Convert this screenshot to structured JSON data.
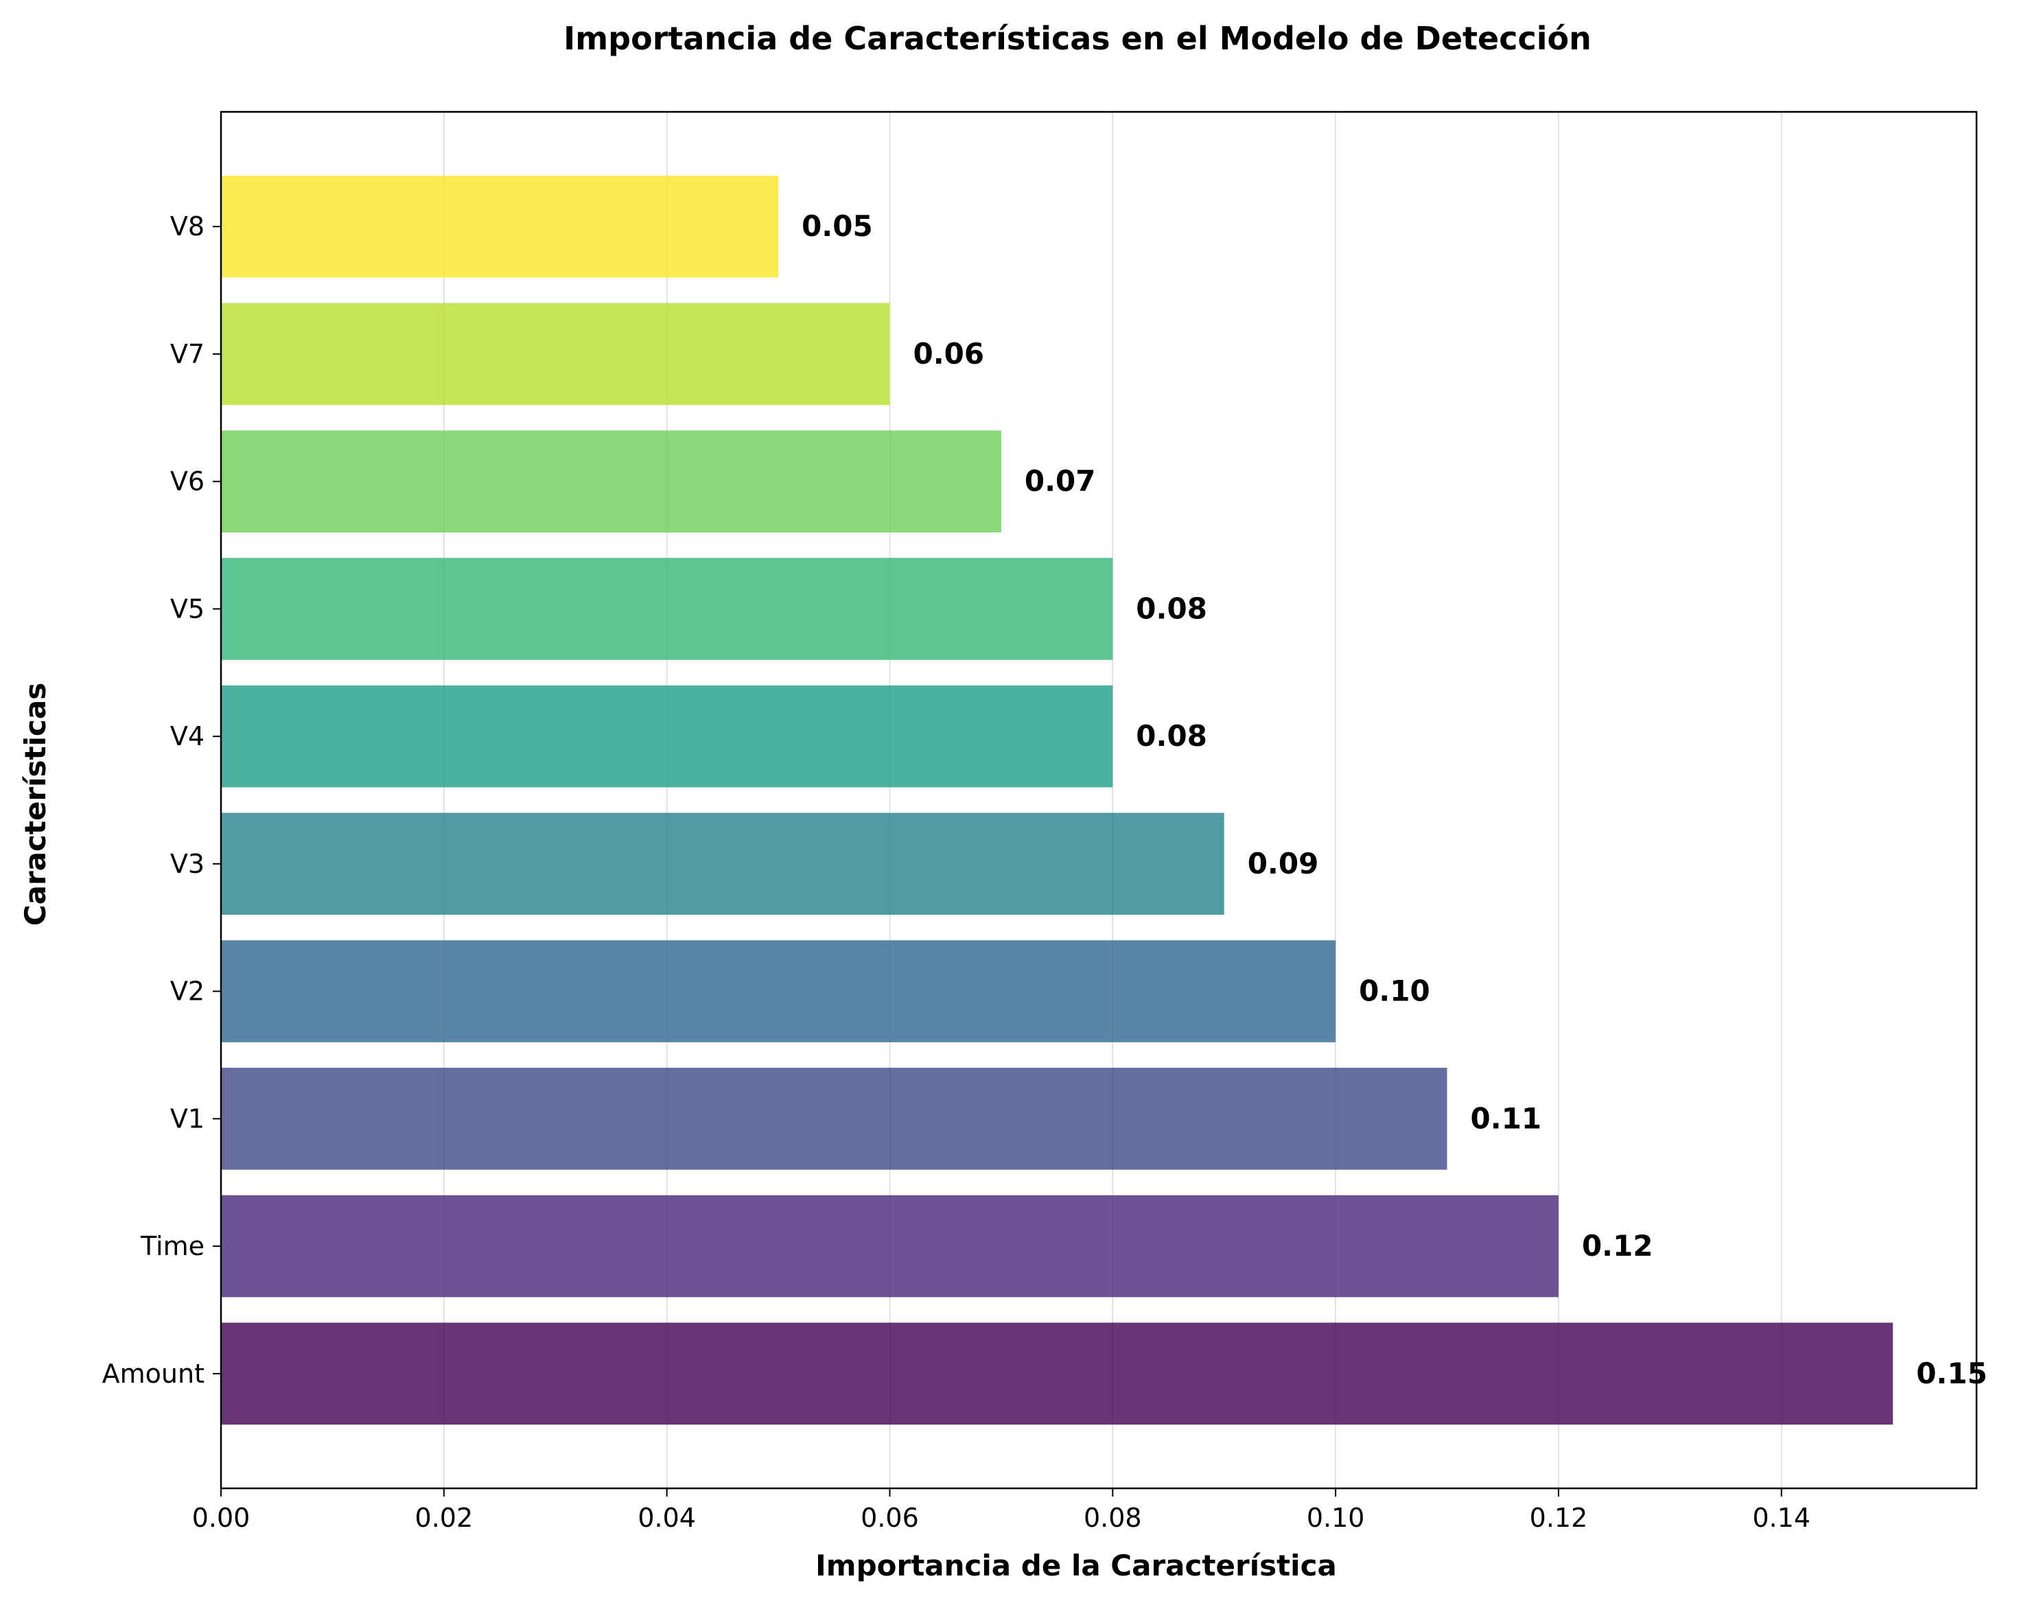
{
  "chart_data": {
    "type": "bar",
    "orientation": "horizontal",
    "title": "Importancia de Características en el Modelo de Detección",
    "xlabel": "Importancia de la Característica",
    "ylabel": "Características",
    "categories": [
      "Amount",
      "Time",
      "V1",
      "V2",
      "V3",
      "V4",
      "V5",
      "V6",
      "V7",
      "V8"
    ],
    "values": [
      0.15,
      0.12,
      0.11,
      0.1,
      0.09,
      0.08,
      0.08,
      0.07,
      0.06,
      0.05
    ],
    "value_labels": [
      "0.15",
      "0.12",
      "0.11",
      "0.10",
      "0.09",
      "0.08",
      "0.08",
      "0.07",
      "0.06",
      "0.05"
    ],
    "colors": [
      "#440154",
      "#482878",
      "#3e4989",
      "#31688e",
      "#26828e",
      "#1f9e89",
      "#35b779",
      "#6ece58",
      "#b5de2b",
      "#fde725"
    ],
    "bar_opacity": 0.8,
    "xlim": [
      0,
      0.1575
    ],
    "xticks": [
      0.0,
      0.02,
      0.04,
      0.06,
      0.08,
      0.1,
      0.12,
      0.14
    ],
    "xtick_labels": [
      "0.00",
      "0.02",
      "0.04",
      "0.06",
      "0.08",
      "0.10",
      "0.12",
      "0.14"
    ],
    "grid": "x",
    "legend": "none"
  }
}
